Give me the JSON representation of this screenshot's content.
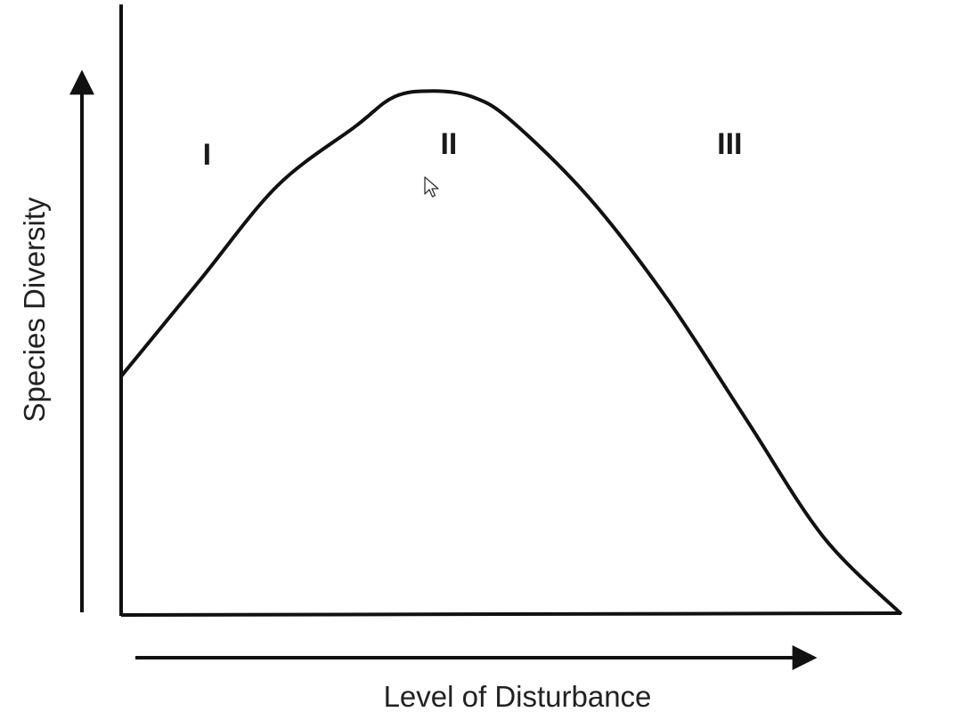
{
  "chart_data": {
    "type": "line",
    "title": "",
    "xlabel": "Level of Disturbance",
    "ylabel": "Species Diversity",
    "xlim": [
      0,
      100
    ],
    "ylim": [
      0,
      100
    ],
    "grid": false,
    "legend": "none",
    "regions": [
      {
        "label": "I",
        "x": 11
      },
      {
        "label": "II",
        "x": 42
      },
      {
        "label": "III",
        "x": 78
      }
    ],
    "series": [
      {
        "x": [
          0,
          10,
          20,
          30,
          35,
          40,
          45,
          50,
          60,
          70,
          80,
          90,
          100
        ],
        "values": [
          40,
          56,
          72,
          82,
          87,
          88,
          87,
          83,
          70,
          53,
          33,
          13,
          0
        ]
      }
    ],
    "colors": {
      "curve": "#111111",
      "axes": "#111111",
      "text": "#222222"
    }
  }
}
